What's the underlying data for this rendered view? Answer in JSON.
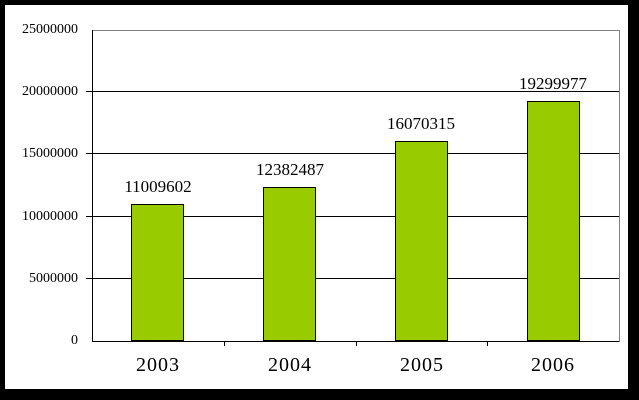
{
  "window": {
    "frame_color": "#000000",
    "canvas_background": "#FFFFFF"
  },
  "chart_data": {
    "type": "bar",
    "title": "",
    "xlabel": "",
    "ylabel": "",
    "categories": [
      "2003",
      "2004",
      "2005",
      "2006"
    ],
    "values": [
      11009602,
      12382487,
      16070315,
      19299977
    ],
    "data_labels": [
      "11009602",
      "12382487",
      "16070315",
      "19299977"
    ],
    "ylim": [
      0,
      25000000
    ],
    "ytick_step": 5000000,
    "yticks": [
      0,
      5000000,
      10000000,
      15000000,
      20000000,
      25000000
    ],
    "ytick_labels": [
      "0",
      "5000000",
      "10000000",
      "15000000",
      "20000000",
      "25000000"
    ],
    "grid": true,
    "legend": false,
    "colors": {
      "bar_fill": "#99CC00",
      "bar_border": "#000000",
      "gridline": "#000000",
      "axis": "#000000",
      "plot_border": "#808080",
      "text": "#000000",
      "plot_background": "#FFFFFF"
    }
  }
}
